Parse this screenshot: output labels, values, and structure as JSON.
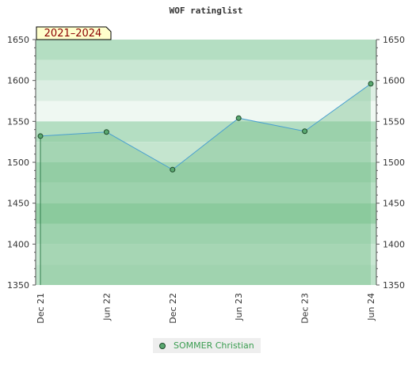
{
  "chart_data": {
    "type": "line",
    "title": "WOF ratinglist",
    "badge": "2021–2024",
    "x": [
      "Dec 21",
      "Jun 22",
      "Dec 22",
      "Jun 23",
      "Dec 23",
      "Jun 24"
    ],
    "series": [
      {
        "name": "SOMMER Christian",
        "values": [
          1532,
          1537,
          1491,
          1554,
          1538,
          1596
        ]
      }
    ],
    "ylim": [
      1350,
      1650
    ],
    "yticks": [
      1350,
      1400,
      1450,
      1500,
      1550,
      1600,
      1650
    ],
    "axes": "left-and-right",
    "legend_position": "bottom-center",
    "grid": true,
    "colors": {
      "line": "#4aa0d0",
      "marker": "#5aa870",
      "area_fill": "#7cc191"
    }
  }
}
